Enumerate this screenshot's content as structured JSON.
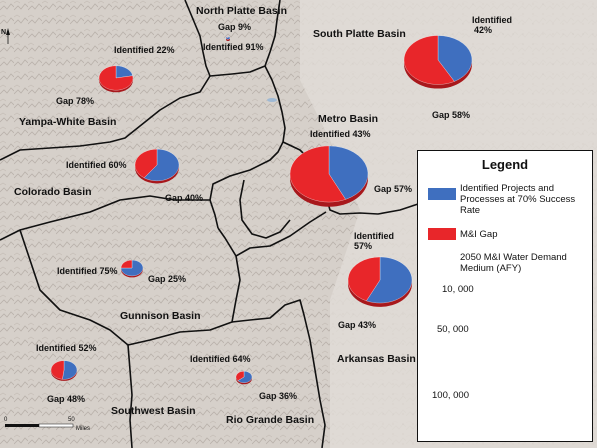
{
  "colors": {
    "identified": "#3f6fbf",
    "gap": "#e8262a",
    "gap_dark": "#a8181c",
    "terrain": "#d9d3cd",
    "border": "#111111"
  },
  "basins": {
    "north_platte": "North Platte Basin",
    "south_platte": "South Platte Basin",
    "yampa_white": "Yampa-White Basin",
    "metro": "Metro Basin",
    "colorado": "Colorado Basin",
    "gunnison": "Gunnison Basin",
    "arkansas": "Arkansas Basin",
    "southwest": "Southwest Basin",
    "rio_grande": "Rio Grande Basin"
  },
  "basin_stats": {
    "north_platte": {
      "gap": "Gap 9%",
      "identified": "Identified 91%"
    },
    "south_platte": {
      "identified": "Identified",
      "identified_pct": "42%",
      "gap": "Gap 58%"
    },
    "yampa_white": {
      "identified": "Identified 22%",
      "gap": "Gap 78%"
    },
    "metro": {
      "identified": "Identified 43%",
      "gap": "Gap 57%"
    },
    "colorado": {
      "identified": "Identified 60%",
      "gap": "Gap 40%"
    },
    "gunnison": {
      "identified": "Identified 75%",
      "gap": "Gap 25%"
    },
    "arkansas": {
      "identified": "Identified",
      "identified_pct": "57%",
      "gap": "Gap 43%"
    },
    "southwest": {
      "identified": "Identified 52%",
      "gap": "Gap 48%"
    },
    "rio_grande": {
      "identified": "Identified 64%",
      "gap": "Gap 36%"
    }
  },
  "pie_data": [
    {
      "basin": "north_platte",
      "identified": 91,
      "gap": 9
    },
    {
      "basin": "south_platte",
      "identified": 42,
      "gap": 58
    },
    {
      "basin": "yampa_white",
      "identified": 22,
      "gap": 78
    },
    {
      "basin": "metro",
      "identified": 43,
      "gap": 57
    },
    {
      "basin": "colorado",
      "identified": 60,
      "gap": 40
    },
    {
      "basin": "gunnison",
      "identified": 75,
      "gap": 25
    },
    {
      "basin": "arkansas",
      "identified": 57,
      "gap": 43
    },
    {
      "basin": "southwest",
      "identified": 52,
      "gap": 48
    },
    {
      "basin": "rio_grande",
      "identified": 64,
      "gap": 36
    }
  ],
  "legend": {
    "title": "Legend",
    "identified_line1": "Identified Projects and",
    "identified_line2": "Processes at 70% Success",
    "identified_line3": "Rate",
    "gap_label": "M&I Gap",
    "demand_line1": "2050 M&I Water Demand",
    "demand_line2": "Medium (AFY)",
    "size_small": "10, 000",
    "size_medium": "50, 000",
    "size_large": "100, 000"
  },
  "scale_bar": {
    "zero": "0",
    "mid": "50",
    "unit": "Miles"
  },
  "north_arrow": "N"
}
